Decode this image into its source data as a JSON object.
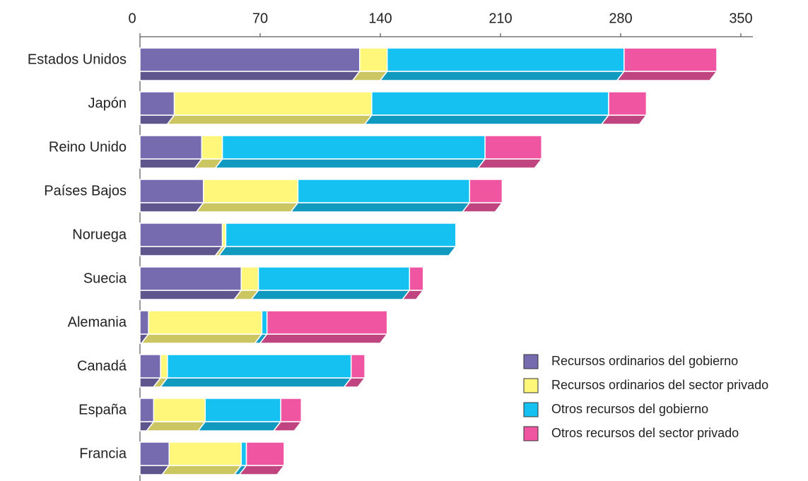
{
  "chart_data": {
    "type": "bar",
    "orientation": "horizontal",
    "stacked": true,
    "categories": [
      "Estados Unidos",
      "Japón",
      "Reino Unido",
      "Países Bajos",
      "Noruega",
      "Suecia",
      "Alemania",
      "Canadá",
      "España",
      "Francia"
    ],
    "series": [
      {
        "name": "Recursos ordinarios del gobierno",
        "color": "#776bb0",
        "values": [
          128,
          20,
          36,
          37,
          48,
          59,
          5,
          12,
          8,
          17
        ]
      },
      {
        "name": "Recursos ordinarios del sector privado",
        "color": "#fff77a",
        "values": [
          16,
          115,
          12,
          55,
          2,
          10,
          66,
          4,
          30,
          42
        ]
      },
      {
        "name": "Otros recursos del gobierno",
        "color": "#15c1f0",
        "values": [
          138,
          138,
          153,
          100,
          134,
          88,
          3,
          107,
          44,
          3
        ]
      },
      {
        "name": "Otros recursos del sector privado",
        "color": "#ef55a0",
        "values": [
          54,
          22,
          33,
          19,
          0,
          8,
          70,
          8,
          12,
          22
        ]
      }
    ],
    "xlim": [
      0,
      350
    ],
    "xticks": [
      0,
      70,
      140,
      210,
      280,
      350
    ],
    "legend": "lower right"
  }
}
